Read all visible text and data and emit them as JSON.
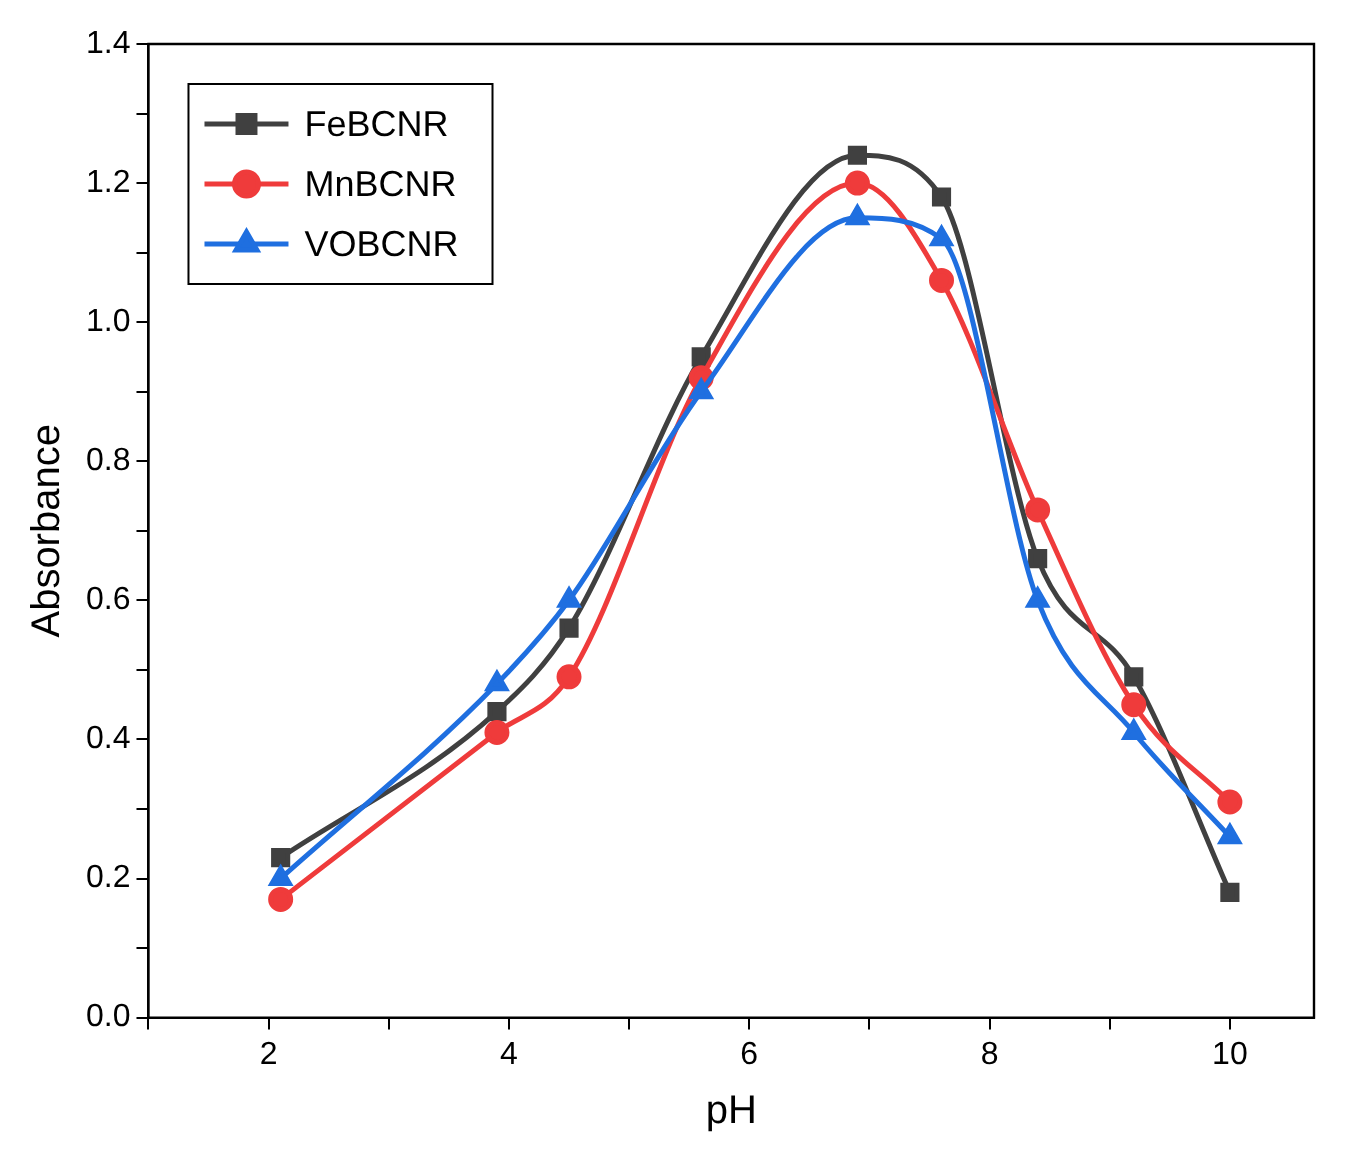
{
  "chart_data": {
    "type": "line",
    "xlabel": "pH",
    "ylabel": "Absorbance",
    "xlim": [
      1,
      10.7
    ],
    "xticks": [
      {
        "value": 1,
        "label": null
      },
      2,
      {
        "value": 3,
        "label": null
      },
      4,
      {
        "value": 5,
        "label": null
      },
      6,
      {
        "value": 7,
        "label": null
      },
      8,
      {
        "value": 9,
        "label": null
      },
      10
    ],
    "ylim": [
      0,
      1.4
    ],
    "yticks": [
      "0.0",
      {
        "value": 0.1,
        "label": null
      },
      0.2,
      {
        "value": 0.3,
        "label": null
      },
      0.4,
      {
        "value": 0.5,
        "label": null
      },
      0.6,
      {
        "value": 0.7,
        "label": null
      },
      0.8,
      {
        "value": 0.9,
        "label": null
      },
      "1.0",
      {
        "value": 1.1,
        "label": null
      },
      1.2,
      {
        "value": 1.3,
        "label": null
      },
      1.4
    ],
    "x": [
      2.1,
      3.9,
      4.5,
      5.6,
      6.9,
      7.6,
      8.4,
      9.2,
      10
    ],
    "grid": false,
    "legend": "top left",
    "series": [
      {
        "name": "FeBCNR",
        "color": "#404040",
        "marker": "square",
        "values": [
          0.23,
          0.44,
          0.56,
          0.95,
          1.24,
          1.18,
          0.66,
          0.49,
          0.18
        ]
      },
      {
        "name": "MnBCNR",
        "color": "#ef3b3b",
        "marker": "circle",
        "values": [
          0.17,
          0.41,
          0.49,
          0.92,
          1.2,
          1.06,
          0.73,
          0.45,
          0.31
        ]
      },
      {
        "name": "VOBCNR",
        "color": "#1f6fe0",
        "marker": "triangle",
        "values": [
          0.2,
          0.48,
          0.6,
          0.9,
          1.15,
          1.12,
          0.6,
          0.41,
          0.26
        ]
      }
    ]
  }
}
